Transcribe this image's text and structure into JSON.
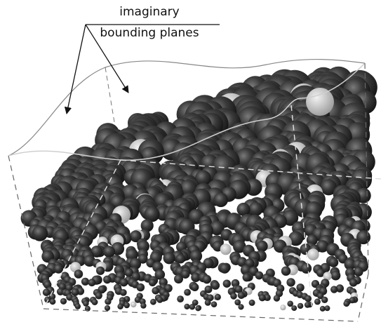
{
  "annotation": {
    "line1": "imaginary",
    "line2": "bounding planes"
  }
}
